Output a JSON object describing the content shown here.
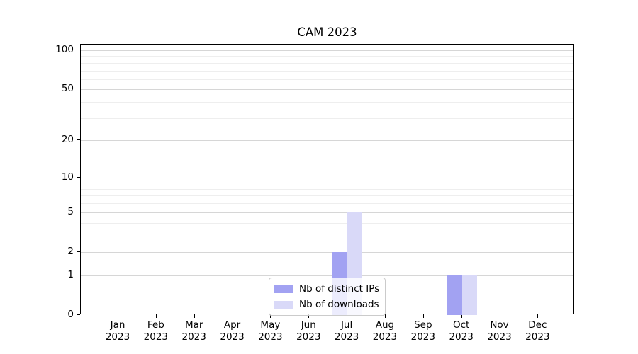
{
  "chart_data": {
    "type": "bar",
    "title": "CAM 2023",
    "categories": [
      "Jan 2023",
      "Feb 2023",
      "Mar 2023",
      "Apr 2023",
      "May 2023",
      "Jun 2023",
      "Jul 2023",
      "Aug 2023",
      "Sep 2023",
      "Oct 2023",
      "Nov 2023",
      "Dec 2023"
    ],
    "series": [
      {
        "name": "Nb of distinct IPs",
        "color": "#a2a2f2",
        "values": [
          0,
          0,
          0,
          0,
          0,
          0,
          2,
          0,
          0,
          1,
          0,
          0
        ]
      },
      {
        "name": "Nb of downloads",
        "color": "#d9d9f8",
        "values": [
          0,
          0,
          0,
          0,
          0,
          0,
          5,
          0,
          0,
          1,
          0,
          0
        ]
      }
    ],
    "xlabel": "",
    "ylabel": "",
    "yscale": "log1p",
    "yticks": [
      0,
      1,
      2,
      5,
      10,
      20,
      50,
      100
    ],
    "minor_yticks": [
      3,
      4,
      6,
      7,
      8,
      9,
      30,
      40,
      60,
      70,
      80,
      90
    ],
    "ylim": [
      0,
      110
    ],
    "grid": "horizontal",
    "legend_position": "lower center"
  },
  "colors": {
    "axis": "#000000",
    "major_grid": "#d6d6d6",
    "minor_grid": "#eeeeee",
    "legend_border": "#cbcbcb",
    "background": "#ffffff"
  }
}
